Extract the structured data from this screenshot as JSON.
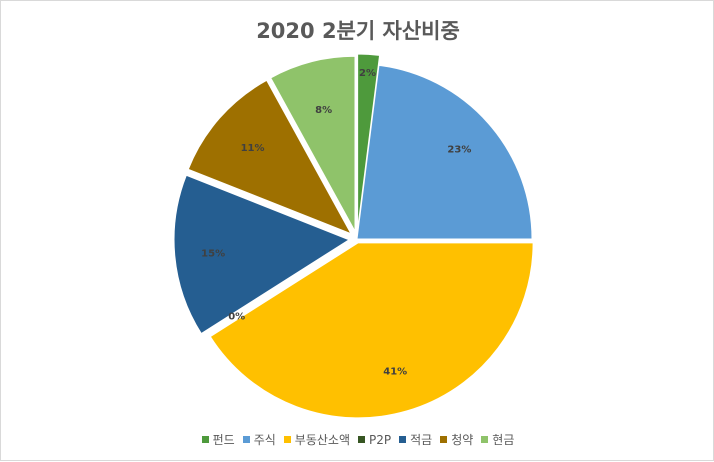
{
  "chart_data": {
    "type": "pie",
    "title": "2020 2분기 자산비중",
    "categories": [
      "펀드",
      "주식",
      "부동산소액",
      "P2P",
      "적금",
      "청약",
      "현금"
    ],
    "values": [
      2,
      23,
      41,
      0,
      15,
      11,
      8
    ],
    "labels": [
      "2%",
      "23%",
      "41%",
      "0%",
      "15%",
      "11%",
      "8%"
    ],
    "colors": [
      "#4e9a3c",
      "#5b9bd5",
      "#ffc000",
      "#375623",
      "#255e91",
      "#9e7000",
      "#8fc36a"
    ],
    "legend_position": "bottom",
    "exploded": true
  }
}
